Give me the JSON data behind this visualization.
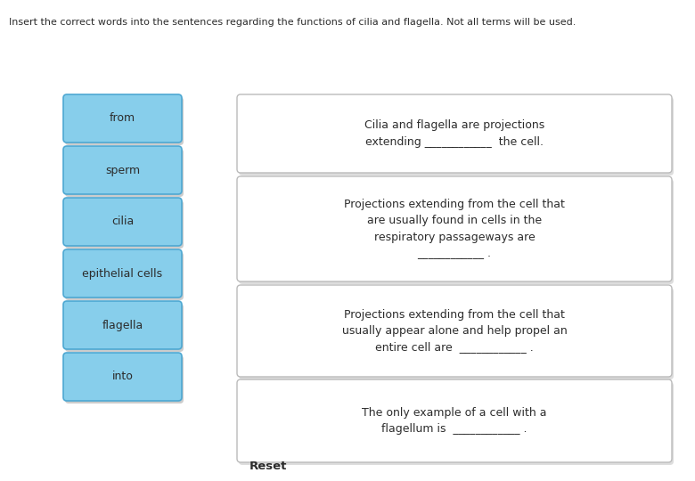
{
  "instruction": "Insert the correct words into the sentences regarding the functions of cilia and flagella. Not all terms will be used.",
  "word_buttons": [
    "from",
    "sperm",
    "cilia",
    "epithelial cells",
    "flagella",
    "into"
  ],
  "sentence_boxes": [
    "Cilia and flagella are projections\nextending ____________  the cell.",
    "Projections extending from the cell that\nare usually found in cells in the\nrespiratory passageways are\n____________ .",
    "Projections extending from the cell that\nusually appear alone and help propel an\nentire cell are  ____________ .",
    "The only example of a cell with a\nflagellum is  ____________ ."
  ],
  "button_color": "#87CEEB",
  "button_border_color": "#4EA8D2",
  "box_border_color": "#BBBBBB",
  "box_bg_color": "#FFFFFF",
  "bg_color": "#FFFFFF",
  "text_color": "#2C2C2C",
  "instruction_color": "#2C2C2C",
  "reset_label": "Reset",
  "instruction_fontsize": 8.0,
  "button_fontsize": 9.0,
  "sentence_fontsize": 9.0,
  "reset_fontsize": 9.5
}
